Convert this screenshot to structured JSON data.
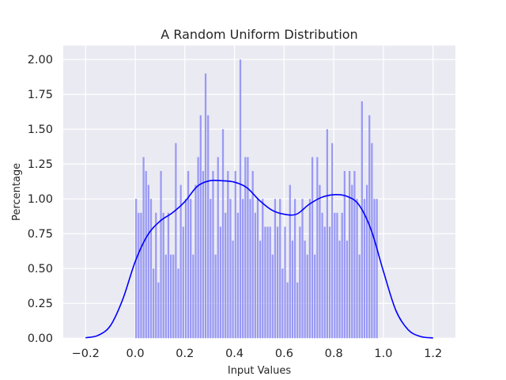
{
  "chart_data": {
    "type": "bar",
    "title": "A Random Uniform Distribution",
    "xlabel": "Input Values",
    "ylabel": "Percentage",
    "xlim": [
      -0.29,
      1.29
    ],
    "ylim": [
      0,
      2.1
    ],
    "xticks": [
      -0.2,
      0.0,
      0.2,
      0.4,
      0.6,
      0.8,
      1.0,
      1.2
    ],
    "xtick_labels": [
      "−0.2",
      "0.0",
      "0.2",
      "0.4",
      "0.6",
      "0.8",
      "1.0",
      "1.2"
    ],
    "yticks": [
      0.0,
      0.25,
      0.5,
      0.75,
      1.0,
      1.25,
      1.5,
      1.75,
      2.0
    ],
    "ytick_labels": [
      "0.00",
      "0.25",
      "0.50",
      "0.75",
      "1.00",
      "1.25",
      "1.50",
      "1.75",
      "2.00"
    ],
    "grid": true,
    "colors": {
      "background": "#eaeaf2",
      "grid": "#ffffff",
      "bars": "#9999f4",
      "kde": "#0000ff"
    },
    "histogram": {
      "bin_start": 0.0,
      "bin_width": 0.01,
      "values": [
        1.0,
        0.9,
        0.9,
        1.3,
        1.2,
        1.1,
        1.0,
        0.5,
        0.9,
        0.4,
        1.2,
        0.9,
        0.6,
        0.9,
        0.6,
        0.6,
        1.4,
        0.5,
        1.1,
        0.8,
        1.0,
        1.2,
        1.0,
        0.6,
        1.1,
        1.3,
        1.6,
        1.2,
        1.9,
        1.6,
        1.0,
        1.2,
        0.6,
        1.3,
        0.8,
        1.5,
        0.9,
        1.2,
        1.0,
        0.7,
        1.2,
        0.9,
        2.0,
        1.0,
        1.3,
        1.3,
        1.0,
        1.2,
        0.9,
        1.0,
        0.7,
        1.0,
        0.8,
        0.8,
        0.8,
        0.6,
        1.0,
        0.8,
        1.0,
        0.5,
        0.8,
        0.4,
        1.1,
        0.7,
        1.0,
        0.4,
        0.8,
        1.0,
        0.7,
        0.6,
        1.0,
        1.3,
        0.6,
        1.3,
        1.1,
        0.9,
        0.8,
        1.5,
        0.8,
        1.4,
        0.9,
        0.9,
        0.7,
        0.9,
        1.2,
        0.7,
        1.2,
        1.1,
        1.2,
        1.0,
        0.6,
        1.7,
        1.0,
        1.1,
        1.6,
        1.4,
        1.0,
        1.0
      ]
    },
    "kde": {
      "x": [
        -0.2,
        -0.15,
        -0.1,
        -0.05,
        0.0,
        0.05,
        0.1,
        0.15,
        0.2,
        0.25,
        0.3,
        0.35,
        0.4,
        0.45,
        0.5,
        0.55,
        0.6,
        0.65,
        0.7,
        0.75,
        0.8,
        0.85,
        0.9,
        0.95,
        1.0,
        1.05,
        1.1,
        1.15,
        1.2
      ],
      "y": [
        0.003,
        0.02,
        0.09,
        0.28,
        0.55,
        0.74,
        0.84,
        0.9,
        0.98,
        1.09,
        1.13,
        1.13,
        1.12,
        1.08,
        0.99,
        0.92,
        0.89,
        0.89,
        0.96,
        1.01,
        1.03,
        1.02,
        0.96,
        0.78,
        0.48,
        0.2,
        0.06,
        0.012,
        0.002
      ]
    }
  }
}
